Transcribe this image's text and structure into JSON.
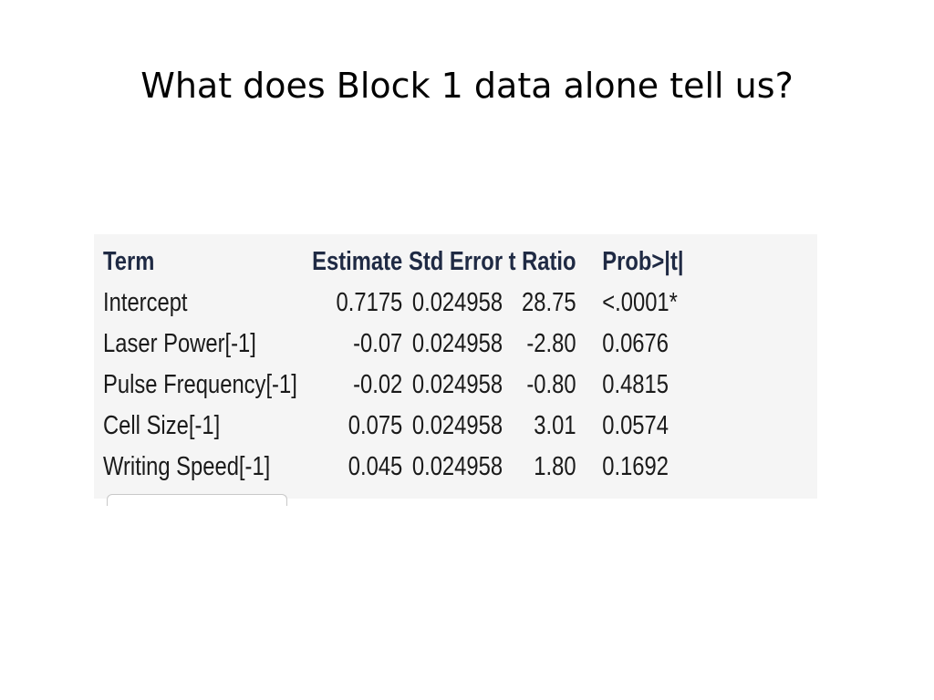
{
  "slide": {
    "title": "What does Block 1 data alone tell us?"
  },
  "table": {
    "headers": {
      "term": "Term",
      "estimate": "Estimate",
      "std_error": "Std Error",
      "t_ratio": "t Ratio",
      "prob": "Prob>|t|"
    },
    "rows": [
      {
        "term": "Intercept",
        "estimate": "0.7175",
        "std_error": "0.024958",
        "t_ratio": "28.75",
        "prob": "<.0001*"
      },
      {
        "term": "Laser Power[-1]",
        "estimate": "-0.07",
        "std_error": "0.024958",
        "t_ratio": "-2.80",
        "prob": "0.0676"
      },
      {
        "term": "Pulse Frequency[-1]",
        "estimate": "-0.02",
        "std_error": "0.024958",
        "t_ratio": "-0.80",
        "prob": "0.4815"
      },
      {
        "term": "Cell Size[-1]",
        "estimate": "0.075",
        "std_error": "0.024958",
        "t_ratio": "3.01",
        "prob": "0.0574"
      },
      {
        "term": "Writing Speed[-1]",
        "estimate": "0.045",
        "std_error": "0.024958",
        "t_ratio": "1.80",
        "prob": "0.1692"
      }
    ]
  }
}
